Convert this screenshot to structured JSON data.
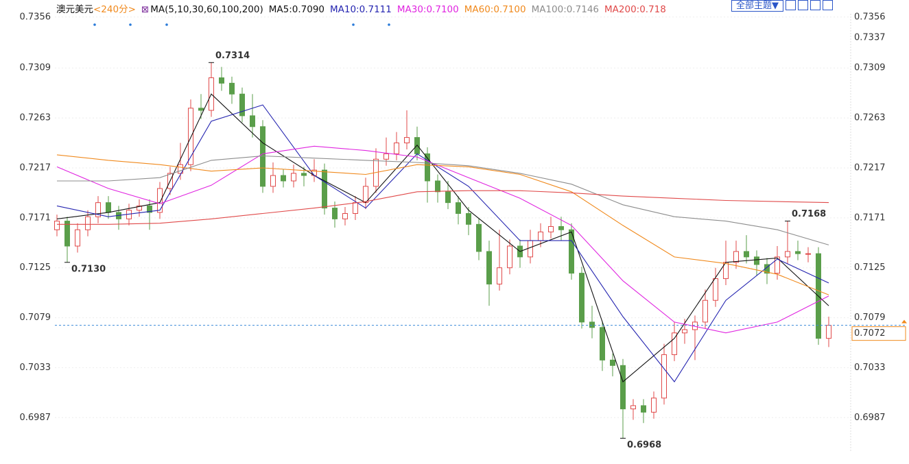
{
  "chart_data": {
    "type": "candlestick",
    "symbol": "澳元美元",
    "period": "<240分>",
    "ma_label": "MA(5,10,30,60,100,200)",
    "theme_button": "全部主题▼",
    "up_color": "#e04848",
    "down_color": "#5a9e4a",
    "ylim": [
      0.6955,
      0.7359
    ],
    "yticks": [
      0.7356,
      0.7309,
      0.7263,
      0.7217,
      0.7171,
      0.7125,
      0.7079,
      0.7033,
      0.6987
    ],
    "grid": true,
    "open": [
      0.716,
      0.7168,
      0.7145,
      0.716,
      0.7172,
      0.7185,
      0.7176,
      0.717,
      0.7178,
      0.7182,
      0.7176,
      0.7198,
      0.7212,
      0.722,
      0.7272,
      0.727,
      0.73,
      0.7295,
      0.7285,
      0.7265,
      0.7255,
      0.72,
      0.721,
      0.7205,
      0.7212,
      0.721,
      0.7215,
      0.718,
      0.717,
      0.7175,
      0.7185,
      0.72,
      0.7225,
      0.723,
      0.724,
      0.7245,
      0.723,
      0.7205,
      0.7195,
      0.7185,
      0.7175,
      0.7165,
      0.714,
      0.711,
      0.7125,
      0.7145,
      0.7135,
      0.715,
      0.7158,
      0.7163,
      0.716,
      0.712,
      0.7075,
      0.707,
      0.704,
      0.7035,
      0.6995,
      0.6998,
      0.6992,
      0.7005,
      0.7045,
      0.7065,
      0.7068,
      0.7075,
      0.7095,
      0.7115,
      0.713,
      0.714,
      0.7135,
      0.7128,
      0.712,
      0.7135,
      0.714,
      0.7138,
      0.7138,
      0.706
    ],
    "high": [
      0.7174,
      0.7172,
      0.7166,
      0.7178,
      0.7191,
      0.7191,
      0.7182,
      0.7184,
      0.7188,
      0.7188,
      0.7204,
      0.7218,
      0.724,
      0.728,
      0.7285,
      0.7314,
      0.731,
      0.7301,
      0.7291,
      0.7285,
      0.7261,
      0.7222,
      0.7216,
      0.722,
      0.7218,
      0.7225,
      0.7221,
      0.7186,
      0.7181,
      0.7191,
      0.7208,
      0.7235,
      0.7245,
      0.725,
      0.727,
      0.7255,
      0.7236,
      0.7211,
      0.7205,
      0.7191,
      0.7181,
      0.7171,
      0.715,
      0.716,
      0.7151,
      0.7151,
      0.716,
      0.7166,
      0.7172,
      0.7172,
      0.7166,
      0.7126,
      0.709,
      0.7076,
      0.7046,
      0.7041,
      0.7004,
      0.7004,
      0.7011,
      0.7055,
      0.7075,
      0.7078,
      0.7081,
      0.7105,
      0.7125,
      0.715,
      0.715,
      0.7155,
      0.7141,
      0.7134,
      0.7145,
      0.7168,
      0.715,
      0.7144,
      0.7144,
      0.708
    ],
    "low": [
      0.7154,
      0.713,
      0.7139,
      0.7154,
      0.7166,
      0.717,
      0.716,
      0.7164,
      0.7172,
      0.716,
      0.717,
      0.7192,
      0.7206,
      0.7214,
      0.7262,
      0.7264,
      0.7288,
      0.7276,
      0.7259,
      0.7245,
      0.7194,
      0.7194,
      0.7199,
      0.7199,
      0.72,
      0.7204,
      0.7174,
      0.7162,
      0.7164,
      0.7169,
      0.7179,
      0.7194,
      0.7219,
      0.7224,
      0.7234,
      0.7224,
      0.7185,
      0.7185,
      0.7179,
      0.7165,
      0.7155,
      0.7132,
      0.709,
      0.7104,
      0.7119,
      0.7125,
      0.7129,
      0.7144,
      0.7152,
      0.715,
      0.7114,
      0.7069,
      0.706,
      0.703,
      0.7025,
      0.6968,
      0.6985,
      0.6982,
      0.6986,
      0.6999,
      0.7039,
      0.7055,
      0.704,
      0.7069,
      0.7089,
      0.7109,
      0.7124,
      0.7129,
      0.7118,
      0.711,
      0.7114,
      0.7129,
      0.7132,
      0.713,
      0.7054,
      0.7052
    ],
    "close": [
      0.7168,
      0.7145,
      0.716,
      0.7172,
      0.7185,
      0.7176,
      0.717,
      0.7178,
      0.7182,
      0.7176,
      0.7198,
      0.7212,
      0.722,
      0.7272,
      0.727,
      0.73,
      0.7295,
      0.7285,
      0.7265,
      0.7255,
      0.72,
      0.721,
      0.7205,
      0.7212,
      0.721,
      0.7215,
      0.718,
      0.717,
      0.7175,
      0.7185,
      0.72,
      0.7225,
      0.723,
      0.724,
      0.7245,
      0.723,
      0.7205,
      0.7195,
      0.7185,
      0.7175,
      0.7165,
      0.714,
      0.711,
      0.7125,
      0.7145,
      0.7135,
      0.715,
      0.7158,
      0.7163,
      0.716,
      0.712,
      0.7075,
      0.707,
      0.704,
      0.7035,
      0.6995,
      0.6998,
      0.6992,
      0.7005,
      0.7045,
      0.7065,
      0.7068,
      0.7075,
      0.7095,
      0.7115,
      0.713,
      0.714,
      0.7135,
      0.7128,
      0.712,
      0.7135,
      0.714,
      0.7138,
      0.7138,
      0.706,
      0.7072
    ],
    "series": [
      {
        "name": "MA5:0.7090",
        "color": "#111111",
        "x": [
          0,
          5,
          10,
          15,
          20,
          25,
          30,
          35,
          40,
          45,
          50,
          55,
          60,
          65,
          70,
          75
        ],
        "values": [
          0.717,
          0.7176,
          0.7185,
          0.7285,
          0.724,
          0.721,
          0.7185,
          0.7238,
          0.7178,
          0.714,
          0.7158,
          0.702,
          0.706,
          0.713,
          0.7134,
          0.709
        ]
      },
      {
        "name": "MA10:0.7111",
        "color": "#2424b0",
        "x": [
          0,
          5,
          10,
          15,
          20,
          25,
          30,
          35,
          40,
          45,
          50,
          55,
          60,
          65,
          70,
          75
        ],
        "values": [
          0.7182,
          0.7172,
          0.7178,
          0.726,
          0.7275,
          0.721,
          0.718,
          0.723,
          0.72,
          0.715,
          0.715,
          0.708,
          0.702,
          0.7095,
          0.7133,
          0.7111
        ]
      },
      {
        "name": "MA30:0.7100",
        "color": "#e024e0",
        "x": [
          0,
          5,
          10,
          15,
          20,
          25,
          30,
          35,
          40,
          45,
          50,
          55,
          60,
          65,
          70,
          75
        ],
        "values": [
          0.7218,
          0.7198,
          0.7184,
          0.7201,
          0.723,
          0.7237,
          0.7233,
          0.7227,
          0.7208,
          0.7189,
          0.7164,
          0.7113,
          0.7075,
          0.7065,
          0.7075,
          0.7099
        ]
      },
      {
        "name": "MA60:0.7100",
        "color": "#f0891c",
        "x": [
          0,
          5,
          10,
          15,
          20,
          25,
          30,
          35,
          40,
          45,
          50,
          55,
          60,
          65,
          70,
          75
        ],
        "values": [
          0.7229,
          0.7224,
          0.722,
          0.7214,
          0.7217,
          0.7214,
          0.7211,
          0.722,
          0.7218,
          0.7211,
          0.7195,
          0.7164,
          0.7135,
          0.7129,
          0.7119,
          0.71
        ]
      },
      {
        "name": "MA100:0.7146",
        "color": "#8c8c8c",
        "x": [
          0,
          5,
          10,
          15,
          20,
          25,
          30,
          35,
          40,
          45,
          50,
          55,
          60,
          65,
          70,
          75
        ],
        "values": [
          0.7205,
          0.7205,
          0.7208,
          0.7224,
          0.7228,
          0.7226,
          0.7224,
          0.7222,
          0.7219,
          0.7212,
          0.7202,
          0.7183,
          0.7172,
          0.7168,
          0.716,
          0.7146
        ]
      },
      {
        "name": "MA200:0.718",
        "color": "#e04848",
        "x": [
          0,
          5,
          10,
          15,
          20,
          25,
          30,
          35,
          40,
          45,
          50,
          55,
          60,
          65,
          70,
          75
        ],
        "values": [
          0.7165,
          0.7165,
          0.7166,
          0.717,
          0.7175,
          0.718,
          0.7186,
          0.7195,
          0.7196,
          0.7196,
          0.7194,
          0.7191,
          0.7189,
          0.7187,
          0.7186,
          0.7185
        ]
      }
    ],
    "annotations": [
      "0.7314",
      "0.7130",
      "0.6968",
      "0.7168"
    ],
    "price_markers": [
      0.7337,
      0.7072
    ]
  }
}
